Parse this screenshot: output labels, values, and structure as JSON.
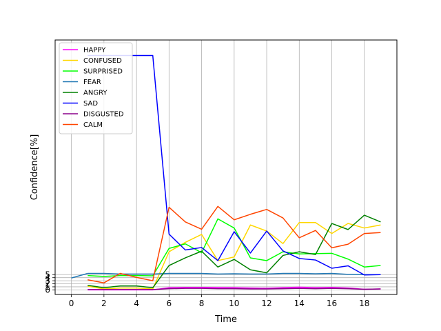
{
  "chart_data": {
    "type": "line",
    "xlabel": "Time",
    "ylabel": "Confidence[%]",
    "xlim": [
      -1,
      20
    ],
    "ylim": [
      -1.5,
      82
    ],
    "x_ticks": [
      "0",
      "2",
      "4",
      "6",
      "8",
      "10",
      "12",
      "14",
      "16",
      "18"
    ],
    "y_ticks": [
      "0",
      "1",
      "2",
      "3",
      "4",
      "5"
    ],
    "grid": "vertical lines at x ticks; horizontal lines at y ticks",
    "legend_position": "top-left",
    "series": [
      {
        "name": "HAPPY",
        "color": "#ff00ff",
        "x": [
          1,
          2,
          3,
          4,
          5,
          6,
          7,
          8,
          9,
          10,
          11,
          12,
          13,
          14,
          15,
          16,
          17,
          18,
          19
        ],
        "y": [
          0.0,
          0.0,
          0.0,
          0.0,
          0.0,
          0.7,
          0.8,
          0.8,
          0.8,
          0.7,
          0.6,
          0.5,
          0.7,
          0.9,
          0.7,
          0.8,
          0.6,
          0.2,
          0.3
        ]
      },
      {
        "name": "CONFUSED",
        "color": "#ffd700",
        "x": [
          1,
          2,
          3,
          4,
          5,
          6,
          7,
          8,
          9,
          10,
          11,
          12,
          13,
          14,
          15,
          16,
          17,
          18,
          19
        ],
        "y": [
          1.2,
          0.3,
          0.6,
          0.6,
          0.3,
          12.5,
          15.6,
          18.2,
          9.6,
          10.8,
          21.3,
          19.3,
          15.2,
          22.1,
          22.1,
          18.5,
          21.8,
          20.3,
          21.3
        ]
      },
      {
        "name": "SURPRISED",
        "color": "#00ff00",
        "x": [
          1,
          2,
          3,
          4,
          5,
          6,
          7,
          8,
          9,
          10,
          11,
          12,
          13,
          14,
          15,
          16,
          17,
          18,
          19
        ],
        "y": [
          4.7,
          4.4,
          4.7,
          4.7,
          4.6,
          13.6,
          15.1,
          12.2,
          23.3,
          20.3,
          10.5,
          9.6,
          12.5,
          11.8,
          11.9,
          12.0,
          10.1,
          7.5,
          8.0
        ]
      },
      {
        "name": "FEAR",
        "color": "#1f77b4",
        "x": [
          1,
          2,
          3,
          4,
          5,
          6,
          7,
          8,
          9,
          10,
          11,
          12,
          13,
          14,
          15,
          16,
          17,
          18,
          19
        ],
        "y": [
          5.4,
          5.4,
          5.2,
          5.2,
          5.2,
          5.4,
          5.4,
          5.4,
          5.2,
          5.3,
          5.2,
          5.2,
          5.4,
          5.4,
          5.3,
          5.4,
          5.1,
          5.0,
          5.0
        ]
      },
      {
        "name": "ANGRY",
        "color": "#008000",
        "x": [
          1,
          2,
          3,
          4,
          5,
          6,
          7,
          8,
          9,
          10,
          11,
          12,
          13,
          14,
          15,
          16,
          17,
          18,
          19
        ],
        "y": [
          1.5,
          0.7,
          1.3,
          1.3,
          0.7,
          8.0,
          10.5,
          12.7,
          7.5,
          10.0,
          6.6,
          5.6,
          11.3,
          12.5,
          11.6,
          21.8,
          19.8,
          24.5,
          22.3
        ]
      },
      {
        "name": "SAD",
        "color": "#0000ff",
        "x": [
          1,
          2,
          3,
          4,
          5,
          6,
          7,
          8,
          9,
          10,
          11,
          12,
          13,
          14,
          15,
          16,
          17,
          18,
          19
        ],
        "y": [
          76.9,
          76.9,
          76.9,
          76.9,
          76.9,
          18.3,
          13.1,
          13.9,
          9.6,
          19.1,
          12.1,
          19.3,
          12.8,
          10.3,
          9.8,
          7.1,
          7.9,
          4.9,
          5.0
        ]
      },
      {
        "name": "DISGUSTED",
        "color": "#8b008b",
        "x": [
          1,
          2,
          3,
          4,
          5,
          6,
          7,
          8,
          9,
          10,
          11,
          12,
          13,
          14,
          15,
          16,
          17,
          18,
          19
        ],
        "y": [
          0.1,
          0.1,
          0.1,
          0.1,
          0.1,
          0.4,
          0.5,
          0.5,
          0.4,
          0.4,
          0.3,
          0.3,
          0.4,
          0.5,
          0.4,
          0.5,
          0.4,
          0.2,
          0.3
        ]
      },
      {
        "name": "CALM",
        "color": "#ff4500",
        "x": [
          1,
          2,
          3,
          4,
          5,
          6,
          7,
          8,
          9,
          10,
          11,
          12,
          13,
          14,
          15,
          16,
          17,
          18,
          19
        ],
        "y": [
          3.3,
          2.3,
          5.4,
          4.1,
          3.0,
          27.1,
          22.3,
          19.9,
          27.4,
          23.0,
          24.8,
          26.4,
          23.6,
          17.1,
          19.5,
          13.8,
          15.0,
          18.5,
          18.8
        ]
      }
    ],
    "extra_segment": {
      "color": "#1f77b4",
      "x": [
        0,
        1
      ],
      "y": [
        3.9,
        5.4
      ]
    }
  }
}
